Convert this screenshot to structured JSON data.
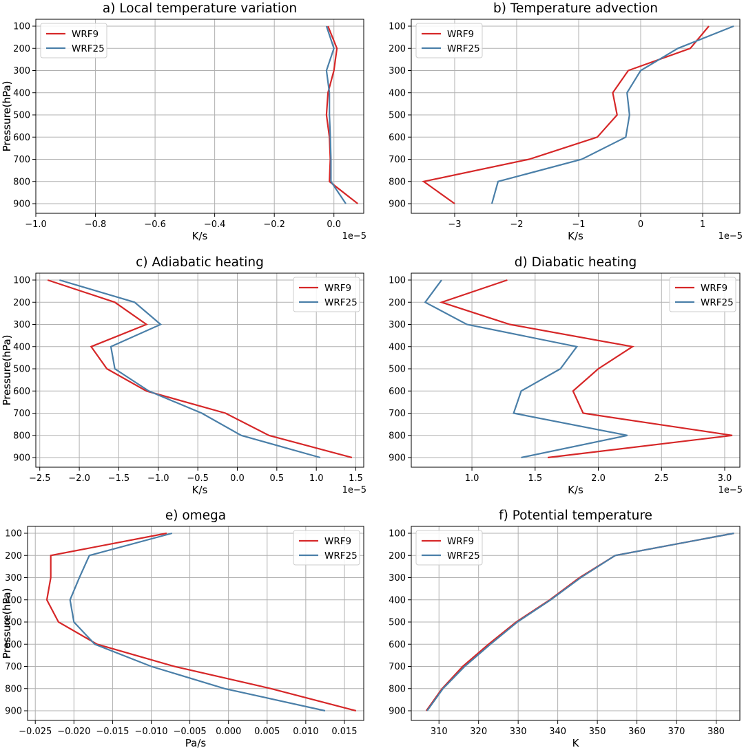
{
  "chart_data": [
    {
      "type": "line",
      "title": "a) Local temperature variation",
      "xlabel": "K/s",
      "ylabel": "Pressure(hPa)",
      "offset_label": "1e−5",
      "xlim": [
        -1.0,
        0.1
      ],
      "ylim": [
        100,
        900
      ],
      "xticks": [
        -1.0,
        -0.8,
        -0.6,
        -0.4,
        -0.2,
        0.0
      ],
      "xtick_labels": [
        "−1.0",
        "−0.8",
        "−0.6",
        "−0.4",
        "−0.2",
        "0.0"
      ],
      "yticks": [
        100,
        200,
        300,
        400,
        500,
        600,
        700,
        800,
        900
      ],
      "ytick_labels": [
        "100",
        "200",
        "300",
        "400",
        "500",
        "600",
        "700",
        "800",
        "900"
      ],
      "grid": true,
      "legend_position": "top-left",
      "pressure": [
        100,
        200,
        300,
        400,
        500,
        600,
        700,
        800,
        900
      ],
      "series": [
        {
          "name": "WRF9",
          "color": "#d62728",
          "values": [
            -0.02,
            0.01,
            0.0,
            -0.02,
            -0.025,
            -0.015,
            -0.012,
            -0.015,
            0.08
          ]
        },
        {
          "name": "WRF25",
          "color": "#4a7fa8",
          "values": [
            -0.025,
            0.0,
            -0.025,
            -0.015,
            -0.015,
            -0.012,
            -0.01,
            -0.01,
            0.04
          ]
        }
      ]
    },
    {
      "type": "line",
      "title": "b) Temperature advection",
      "xlabel": "K/s",
      "ylabel": "Pressure(hPa)",
      "offset_label": "1e−5",
      "xlim": [
        -3.7,
        1.6
      ],
      "ylim": [
        100,
        900
      ],
      "xticks": [
        -3,
        -2,
        -1,
        0,
        1
      ],
      "xtick_labels": [
        "−3",
        "−2",
        "−1",
        "0",
        "1"
      ],
      "yticks": [
        100,
        200,
        300,
        400,
        500,
        600,
        700,
        800,
        900
      ],
      "ytick_labels": [
        "100",
        "200",
        "300",
        "400",
        "500",
        "600",
        "700",
        "800",
        "900"
      ],
      "grid": true,
      "legend_position": "top-left",
      "pressure": [
        100,
        200,
        300,
        400,
        500,
        600,
        700,
        800,
        900
      ],
      "series": [
        {
          "name": "WRF9",
          "color": "#d62728",
          "values": [
            1.1,
            0.8,
            -0.2,
            -0.45,
            -0.38,
            -0.7,
            -1.8,
            -3.5,
            -3.0
          ]
        },
        {
          "name": "WRF25",
          "color": "#4a7fa8",
          "values": [
            1.5,
            0.6,
            0.0,
            -0.22,
            -0.18,
            -0.24,
            -0.95,
            -2.3,
            -2.4
          ]
        }
      ]
    },
    {
      "type": "line",
      "title": "c) Adiabatic heating",
      "xlabel": "K/s",
      "ylabel": "Pressure(hPa)",
      "offset_label": "1e−5",
      "xlim": [
        -2.55,
        1.6
      ],
      "ylim": [
        100,
        900
      ],
      "xticks": [
        -2.5,
        -2.0,
        -1.5,
        -1.0,
        -0.5,
        0.0,
        0.5,
        1.0,
        1.5
      ],
      "xtick_labels": [
        "−2.5",
        "−2.0",
        "−1.5",
        "−1.0",
        "−0.5",
        "0.0",
        "0.5",
        "1.0",
        "1.5"
      ],
      "yticks": [
        100,
        200,
        300,
        400,
        500,
        600,
        700,
        800,
        900
      ],
      "ytick_labels": [
        "100",
        "200",
        "300",
        "400",
        "500",
        "600",
        "700",
        "800",
        "900"
      ],
      "grid": true,
      "legend_position": "top-right",
      "pressure": [
        100,
        200,
        300,
        400,
        500,
        600,
        700,
        800,
        900
      ],
      "series": [
        {
          "name": "WRF9",
          "color": "#d62728",
          "values": [
            -2.4,
            -1.55,
            -1.15,
            -1.85,
            -1.65,
            -1.15,
            -0.15,
            0.4,
            1.45
          ]
        },
        {
          "name": "WRF25",
          "color": "#4a7fa8",
          "values": [
            -2.25,
            -1.3,
            -0.97,
            -1.6,
            -1.55,
            -1.12,
            -0.45,
            0.05,
            1.05
          ]
        }
      ]
    },
    {
      "type": "line",
      "title": "d) Diabatic heating",
      "xlabel": "K/s",
      "ylabel": "Pressure(hPa)",
      "offset_label": "1e−5",
      "xlim": [
        0.52,
        3.12
      ],
      "ylim": [
        100,
        900
      ],
      "xticks": [
        1.0,
        1.5,
        2.0,
        2.5,
        3.0
      ],
      "xtick_labels": [
        "1.0",
        "1.5",
        "2.0",
        "2.5",
        "3.0"
      ],
      "yticks": [
        100,
        200,
        300,
        400,
        500,
        600,
        700,
        800,
        900
      ],
      "ytick_labels": [
        "100",
        "200",
        "300",
        "400",
        "500",
        "600",
        "700",
        "800",
        "900"
      ],
      "grid": true,
      "legend_position": "top-right",
      "pressure": [
        100,
        200,
        300,
        400,
        500,
        600,
        700,
        800,
        900
      ],
      "series": [
        {
          "name": "WRF9",
          "color": "#d62728",
          "values": [
            1.28,
            0.76,
            1.3,
            2.27,
            2.0,
            1.8,
            1.88,
            3.06,
            1.6
          ]
        },
        {
          "name": "WRF25",
          "color": "#4a7fa8",
          "values": [
            0.76,
            0.63,
            0.96,
            1.83,
            1.7,
            1.39,
            1.33,
            2.23,
            1.39
          ]
        }
      ]
    },
    {
      "type": "line",
      "title": "e) omega",
      "xlabel": "Pa/s",
      "ylabel": "Pressure(hPa)",
      "offset_label": "",
      "xlim": [
        -0.026,
        0.0175
      ],
      "ylim": [
        100,
        900
      ],
      "xticks": [
        -0.025,
        -0.02,
        -0.015,
        -0.01,
        -0.005,
        0.0,
        0.005,
        0.01,
        0.015
      ],
      "xtick_labels": [
        "−0.025",
        "−0.020",
        "−0.015",
        "−0.010",
        "−0.005",
        "0.000",
        "0.005",
        "0.010",
        "0.015"
      ],
      "yticks": [
        100,
        200,
        300,
        400,
        500,
        600,
        700,
        800,
        900
      ],
      "ytick_labels": [
        "100",
        "200",
        "300",
        "400",
        "500",
        "600",
        "700",
        "800",
        "900"
      ],
      "grid": true,
      "legend_position": "top-right",
      "pressure": [
        100,
        200,
        300,
        400,
        500,
        600,
        700,
        800,
        900
      ],
      "series": [
        {
          "name": "WRF9",
          "color": "#d62728",
          "values": [
            -0.008,
            -0.023,
            -0.023,
            -0.0235,
            -0.022,
            -0.017,
            -0.007,
            0.0055,
            0.0165
          ]
        },
        {
          "name": "WRF25",
          "color": "#4a7fa8",
          "values": [
            -0.0073,
            -0.018,
            -0.0193,
            -0.0205,
            -0.02,
            -0.0173,
            -0.01,
            -0.0005,
            0.0125
          ]
        }
      ]
    },
    {
      "type": "line",
      "title": "f) Potential temperature",
      "xlabel": "K",
      "ylabel": "Pressure(hPa)",
      "offset_label": "",
      "xlim": [
        303,
        386
      ],
      "ylim": [
        100,
        900
      ],
      "xticks": [
        310,
        320,
        330,
        340,
        350,
        360,
        370,
        380
      ],
      "xtick_labels": [
        "310",
        "320",
        "330",
        "340",
        "350",
        "360",
        "370",
        "380"
      ],
      "yticks": [
        100,
        200,
        300,
        400,
        500,
        600,
        700,
        800,
        900
      ],
      "ytick_labels": [
        "100",
        "200",
        "300",
        "400",
        "500",
        "600",
        "700",
        "800",
        "900"
      ],
      "grid": true,
      "legend_position": "top-left",
      "pressure": [
        100,
        200,
        300,
        400,
        500,
        600,
        700,
        800,
        900
      ],
      "series": [
        {
          "name": "WRF9",
          "color": "#d62728",
          "values": [
            384.5,
            354.5,
            345.5,
            338,
            329.5,
            322.5,
            316,
            310.8,
            306.8
          ]
        },
        {
          "name": "WRF25",
          "color": "#4a7fa8",
          "values": [
            384.5,
            354.5,
            345.8,
            338.2,
            329.8,
            323,
            316.5,
            311,
            307
          ]
        }
      ]
    }
  ]
}
